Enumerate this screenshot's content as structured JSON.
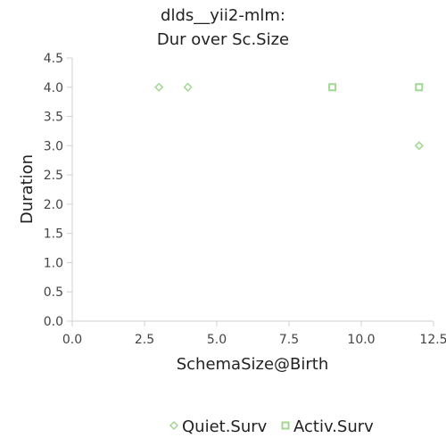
{
  "chart_data": {
    "type": "scatter",
    "title_lines": [
      "dlds__yii2-mlm:",
      "Dur over Sc.Size"
    ],
    "xlabel": "SchemaSize@Birth",
    "ylabel": "Duration",
    "xlim": [
      0,
      12.5
    ],
    "ylim": [
      0,
      4.5
    ],
    "xticks": [
      0,
      2.5,
      5,
      7.5,
      10,
      12.5
    ],
    "yticks": [
      0,
      0.5,
      1,
      1.5,
      2,
      2.5,
      3,
      3.5,
      4,
      4.5
    ],
    "xtick_labels": [
      "0.0",
      "2.5",
      "5.0",
      "7.5",
      "10.0",
      "12.5"
    ],
    "ytick_labels": [
      "0.0",
      "0.5",
      "1.0",
      "1.5",
      "2.0",
      "2.5",
      "3.0",
      "3.5",
      "4.0",
      "4.5"
    ],
    "grid": false,
    "legend_position": "bottom",
    "series": [
      {
        "name": "Quiet.Surv",
        "marker": "diamond",
        "color": "#9fd88f",
        "points": [
          {
            "x": 3,
            "y": 4
          },
          {
            "x": 4,
            "y": 4
          },
          {
            "x": 12,
            "y": 3
          }
        ]
      },
      {
        "name": "Activ.Surv",
        "marker": "square",
        "color": "#9fd88f",
        "points": [
          {
            "x": 9,
            "y": 4
          },
          {
            "x": 12,
            "y": 4
          }
        ]
      }
    ]
  }
}
